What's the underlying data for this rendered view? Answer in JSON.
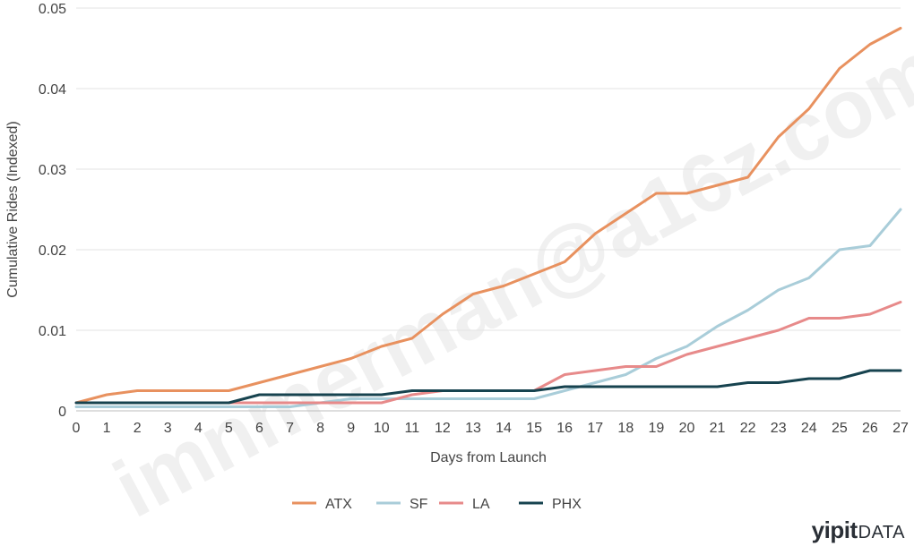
{
  "chart_data": {
    "type": "line",
    "title": "",
    "xlabel": "Days from Launch",
    "ylabel": "Cumulative Rides (Indexed)",
    "x": [
      0,
      1,
      2,
      3,
      4,
      5,
      6,
      7,
      8,
      9,
      10,
      11,
      12,
      13,
      14,
      15,
      16,
      17,
      18,
      19,
      20,
      21,
      22,
      23,
      24,
      25,
      26,
      27
    ],
    "xlim": [
      0,
      27
    ],
    "ylim": [
      0,
      0.05
    ],
    "yticks": [
      "0",
      "0.01",
      "0.02",
      "0.03",
      "0.04",
      "0.05"
    ],
    "ytick_values": [
      0,
      0.01,
      0.02,
      0.03,
      0.04,
      0.05
    ],
    "grid": true,
    "legend_position": "bottom-center",
    "series": [
      {
        "name": "ATX",
        "color": "#e8915f",
        "values": [
          0.001,
          0.002,
          0.0025,
          0.0025,
          0.0025,
          0.0025,
          0.0035,
          0.0045,
          0.0055,
          0.0065,
          0.008,
          0.009,
          0.012,
          0.0145,
          0.0155,
          0.017,
          0.0185,
          0.022,
          0.0245,
          0.027,
          0.027,
          0.028,
          0.029,
          0.034,
          0.0375,
          0.0425,
          0.0455,
          0.0475
        ]
      },
      {
        "name": "SF",
        "color": "#a9cdd9",
        "values": [
          0.0005,
          0.0005,
          0.0005,
          0.0005,
          0.0005,
          0.0005,
          0.0005,
          0.0005,
          0.001,
          0.0015,
          0.0015,
          0.0015,
          0.0015,
          0.0015,
          0.0015,
          0.0015,
          0.0025,
          0.0035,
          0.0045,
          0.0065,
          0.008,
          0.0105,
          0.0125,
          0.015,
          0.0165,
          0.02,
          0.0205,
          0.025
        ]
      },
      {
        "name": "LA",
        "color": "#e78a8a",
        "values": [
          0.001,
          0.001,
          0.001,
          0.001,
          0.001,
          0.001,
          0.001,
          0.001,
          0.001,
          0.001,
          0.001,
          0.002,
          0.0025,
          0.0025,
          0.0025,
          0.0025,
          0.0045,
          0.005,
          0.0055,
          0.0055,
          0.007,
          0.008,
          0.009,
          0.01,
          0.0115,
          0.0115,
          0.012,
          0.0135
        ]
      },
      {
        "name": "PHX",
        "color": "#17434f",
        "values": [
          0.001,
          0.001,
          0.001,
          0.001,
          0.001,
          0.001,
          0.002,
          0.002,
          0.002,
          0.002,
          0.002,
          0.0025,
          0.0025,
          0.0025,
          0.0025,
          0.0025,
          0.003,
          0.003,
          0.003,
          0.003,
          0.003,
          0.003,
          0.0035,
          0.0035,
          0.004,
          0.004,
          0.005,
          0.005
        ]
      }
    ]
  },
  "watermark": "imnmerman@a16z.com",
  "logo": {
    "brand": "yipit",
    "suffix": "DATA"
  }
}
